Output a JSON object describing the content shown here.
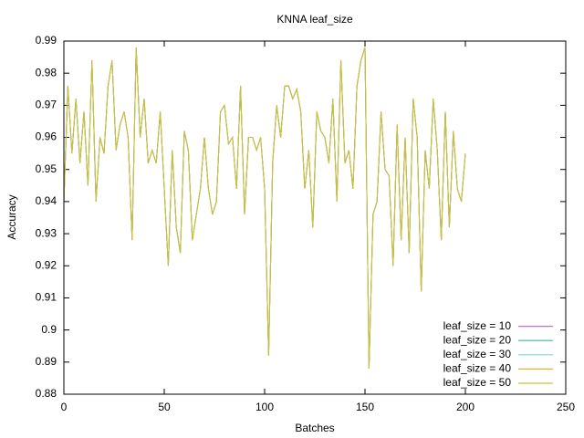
{
  "chart_data": {
    "type": "line",
    "title": "KNNA leaf_size",
    "xlabel": "Batches",
    "ylabel": "Accuracy",
    "legend": "bottom right",
    "xlim": [
      0,
      250
    ],
    "xticks": [
      0,
      50,
      100,
      150,
      200,
      250
    ],
    "ylim": [
      0.88,
      0.99
    ],
    "yticks": [
      0.88,
      0.89,
      0.9,
      0.91,
      0.92,
      0.93,
      0.94,
      0.95,
      0.96,
      0.97,
      0.98,
      0.99
    ],
    "x": [
      0,
      2,
      4,
      6,
      8,
      10,
      12,
      14,
      16,
      18,
      20,
      22,
      24,
      26,
      28,
      30,
      32,
      34,
      36,
      38,
      40,
      42,
      44,
      46,
      48,
      50,
      52,
      54,
      56,
      58,
      60,
      62,
      64,
      66,
      68,
      70,
      72,
      74,
      76,
      78,
      80,
      82,
      84,
      86,
      88,
      90,
      92,
      94,
      96,
      98,
      100,
      102,
      104,
      106,
      108,
      110,
      112,
      114,
      116,
      118,
      120,
      122,
      124,
      126,
      128,
      130,
      132,
      134,
      136,
      138,
      140,
      142,
      144,
      146,
      148,
      150,
      152,
      154,
      156,
      158,
      160,
      162,
      164,
      166,
      168,
      170,
      172,
      174,
      176,
      178,
      180,
      182,
      184,
      186,
      188,
      190,
      192,
      194,
      196,
      198,
      200
    ],
    "series": [
      {
        "name": "leaf_size = 10",
        "color": "#c070e0",
        "values": [
          0.94,
          0.976,
          0.955,
          0.972,
          0.952,
          0.968,
          0.945,
          0.984,
          0.94,
          0.96,
          0.955,
          0.976,
          0.984,
          0.956,
          0.964,
          0.968,
          0.96,
          0.928,
          0.988,
          0.96,
          0.972,
          0.952,
          0.956,
          0.952,
          0.968,
          0.944,
          0.92,
          0.956,
          0.932,
          0.924,
          0.962,
          0.956,
          0.928,
          0.936,
          0.944,
          0.96,
          0.944,
          0.936,
          0.94,
          0.968,
          0.97,
          0.958,
          0.96,
          0.944,
          0.976,
          0.936,
          0.96,
          0.96,
          0.956,
          0.96,
          0.944,
          0.892,
          0.952,
          0.97,
          0.96,
          0.976,
          0.976,
          0.972,
          0.975,
          0.968,
          0.944,
          0.956,
          0.932,
          0.968,
          0.962,
          0.96,
          0.952,
          0.972,
          0.94,
          0.984,
          0.952,
          0.956,
          0.944,
          0.976,
          0.984,
          0.988,
          0.888,
          0.936,
          0.94,
          0.968,
          0.95,
          0.948,
          0.92,
          0.964,
          0.928,
          0.96,
          0.924,
          0.972,
          0.96,
          0.912,
          0.956,
          0.944,
          0.972,
          0.956,
          0.928,
          0.968,
          0.932,
          0.962,
          0.944,
          0.94,
          0.955
        ]
      },
      {
        "name": "leaf_size = 20",
        "color": "#40b0a0",
        "values": [
          0.94,
          0.976,
          0.955,
          0.972,
          0.952,
          0.968,
          0.945,
          0.984,
          0.94,
          0.96,
          0.955,
          0.976,
          0.984,
          0.956,
          0.964,
          0.968,
          0.96,
          0.928,
          0.988,
          0.96,
          0.972,
          0.952,
          0.956,
          0.952,
          0.968,
          0.944,
          0.92,
          0.956,
          0.932,
          0.924,
          0.962,
          0.956,
          0.928,
          0.936,
          0.944,
          0.96,
          0.944,
          0.936,
          0.94,
          0.968,
          0.97,
          0.958,
          0.96,
          0.944,
          0.976,
          0.936,
          0.96,
          0.96,
          0.956,
          0.96,
          0.944,
          0.892,
          0.952,
          0.97,
          0.96,
          0.976,
          0.976,
          0.972,
          0.975,
          0.968,
          0.944,
          0.956,
          0.932,
          0.968,
          0.962,
          0.96,
          0.952,
          0.972,
          0.94,
          0.984,
          0.952,
          0.956,
          0.944,
          0.976,
          0.984,
          0.988,
          0.888,
          0.936,
          0.94,
          0.968,
          0.95,
          0.948,
          0.92,
          0.964,
          0.928,
          0.96,
          0.924,
          0.972,
          0.96,
          0.912,
          0.956,
          0.944,
          0.972,
          0.956,
          0.928,
          0.968,
          0.932,
          0.962,
          0.944,
          0.94,
          0.955
        ]
      },
      {
        "name": "leaf_size = 30",
        "color": "#80d0e8",
        "values": [
          0.94,
          0.976,
          0.955,
          0.972,
          0.952,
          0.968,
          0.945,
          0.984,
          0.94,
          0.96,
          0.955,
          0.976,
          0.984,
          0.956,
          0.964,
          0.968,
          0.96,
          0.928,
          0.988,
          0.96,
          0.972,
          0.952,
          0.956,
          0.952,
          0.968,
          0.944,
          0.92,
          0.956,
          0.932,
          0.924,
          0.962,
          0.956,
          0.928,
          0.936,
          0.944,
          0.96,
          0.944,
          0.936,
          0.94,
          0.968,
          0.97,
          0.958,
          0.96,
          0.944,
          0.976,
          0.936,
          0.96,
          0.96,
          0.956,
          0.96,
          0.944,
          0.892,
          0.952,
          0.97,
          0.96,
          0.976,
          0.976,
          0.972,
          0.975,
          0.968,
          0.944,
          0.956,
          0.932,
          0.968,
          0.962,
          0.96,
          0.952,
          0.972,
          0.94,
          0.984,
          0.952,
          0.956,
          0.944,
          0.976,
          0.984,
          0.988,
          0.888,
          0.936,
          0.94,
          0.968,
          0.95,
          0.948,
          0.92,
          0.964,
          0.928,
          0.96,
          0.924,
          0.972,
          0.96,
          0.912,
          0.956,
          0.944,
          0.972,
          0.956,
          0.928,
          0.968,
          0.932,
          0.962,
          0.944,
          0.94,
          0.955
        ]
      },
      {
        "name": "leaf_size = 40",
        "color": "#e8b030",
        "values": [
          0.94,
          0.976,
          0.955,
          0.972,
          0.952,
          0.968,
          0.945,
          0.984,
          0.94,
          0.96,
          0.955,
          0.976,
          0.984,
          0.956,
          0.964,
          0.968,
          0.96,
          0.928,
          0.988,
          0.96,
          0.972,
          0.952,
          0.956,
          0.952,
          0.968,
          0.944,
          0.92,
          0.956,
          0.932,
          0.924,
          0.962,
          0.956,
          0.928,
          0.936,
          0.944,
          0.96,
          0.944,
          0.936,
          0.94,
          0.968,
          0.97,
          0.958,
          0.96,
          0.944,
          0.976,
          0.936,
          0.96,
          0.96,
          0.956,
          0.96,
          0.944,
          0.892,
          0.952,
          0.97,
          0.96,
          0.976,
          0.976,
          0.972,
          0.975,
          0.968,
          0.944,
          0.956,
          0.932,
          0.968,
          0.962,
          0.96,
          0.952,
          0.972,
          0.94,
          0.984,
          0.952,
          0.956,
          0.944,
          0.976,
          0.984,
          0.988,
          0.888,
          0.936,
          0.94,
          0.968,
          0.95,
          0.948,
          0.92,
          0.964,
          0.928,
          0.96,
          0.924,
          0.972,
          0.96,
          0.912,
          0.956,
          0.944,
          0.972,
          0.956,
          0.928,
          0.968,
          0.932,
          0.962,
          0.944,
          0.94,
          0.955
        ]
      },
      {
        "name": "leaf_size = 50",
        "color": "#c8c040",
        "values": [
          0.94,
          0.976,
          0.955,
          0.972,
          0.952,
          0.968,
          0.945,
          0.984,
          0.94,
          0.96,
          0.955,
          0.976,
          0.984,
          0.956,
          0.964,
          0.968,
          0.96,
          0.928,
          0.988,
          0.96,
          0.972,
          0.952,
          0.956,
          0.952,
          0.968,
          0.944,
          0.92,
          0.956,
          0.932,
          0.924,
          0.962,
          0.956,
          0.928,
          0.936,
          0.944,
          0.96,
          0.944,
          0.936,
          0.94,
          0.968,
          0.97,
          0.958,
          0.96,
          0.944,
          0.976,
          0.936,
          0.96,
          0.96,
          0.956,
          0.96,
          0.944,
          0.892,
          0.952,
          0.97,
          0.96,
          0.976,
          0.976,
          0.972,
          0.975,
          0.968,
          0.944,
          0.956,
          0.932,
          0.968,
          0.962,
          0.96,
          0.952,
          0.972,
          0.94,
          0.984,
          0.952,
          0.956,
          0.944,
          0.976,
          0.984,
          0.988,
          0.888,
          0.936,
          0.94,
          0.968,
          0.95,
          0.948,
          0.92,
          0.964,
          0.928,
          0.96,
          0.924,
          0.972,
          0.96,
          0.912,
          0.956,
          0.944,
          0.972,
          0.956,
          0.928,
          0.968,
          0.932,
          0.962,
          0.944,
          0.94,
          0.955
        ]
      }
    ]
  }
}
